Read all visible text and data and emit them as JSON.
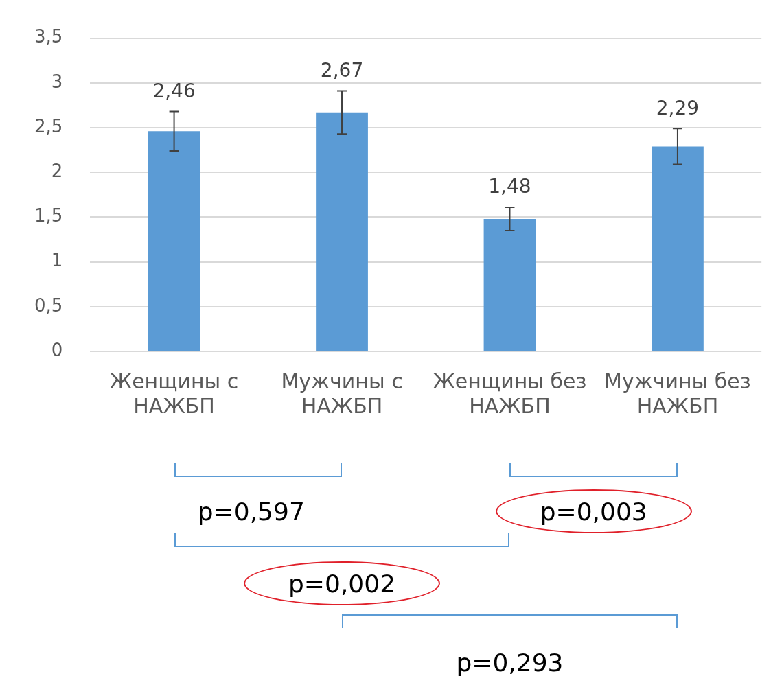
{
  "chart_data": {
    "type": "bar",
    "categories": [
      "Женщины с НАЖБП",
      "Мужчины с НАЖБП",
      "Женщины без НАЖБП",
      "Мужчины без НАЖБП"
    ],
    "values": [
      2.46,
      2.67,
      1.48,
      2.29
    ],
    "errors": [
      0.22,
      0.24,
      0.13,
      0.2
    ],
    "value_labels": [
      "2,46",
      "2,67",
      "1,48",
      "2,29"
    ],
    "color": "#5b9bd5",
    "ylim": [
      0,
      3.5
    ],
    "yticks": [
      0,
      {
        "value": 0.5,
        "label": "0,5"
      },
      1,
      {
        "value": 1.5,
        "label": "1,5"
      },
      2,
      {
        "value": 2.5,
        "label": "2,5"
      },
      3,
      {
        "value": 3.5,
        "label": "3,5"
      }
    ],
    "grid": "y",
    "annotations": [
      "p=0,597",
      "p=0,003",
      "p=0,002",
      "p=0,293"
    ]
  }
}
